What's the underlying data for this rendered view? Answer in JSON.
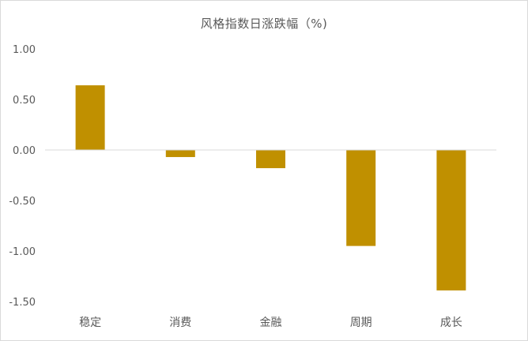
{
  "chart_data": {
    "type": "bar",
    "title": "风格指数日涨跌幅（%)",
    "categories": [
      "稳定",
      "消费",
      "金融",
      "周期",
      "成长"
    ],
    "values": [
      0.64,
      -0.07,
      -0.18,
      -0.95,
      -1.39
    ],
    "y_ticks": [
      "1.00",
      "0.50",
      "0.00",
      "-0.50",
      "-1.00",
      "-1.50"
    ],
    "y_tick_values": [
      1.0,
      0.5,
      0.0,
      -0.5,
      -1.0,
      -1.5
    ],
    "ylim": [
      -1.5,
      1.0
    ],
    "xlabel": "",
    "ylabel": "",
    "grid": false,
    "legend": "none",
    "bar_color": "#C09000",
    "axis_color": "#D9D9D9",
    "text_color": "#595959"
  }
}
